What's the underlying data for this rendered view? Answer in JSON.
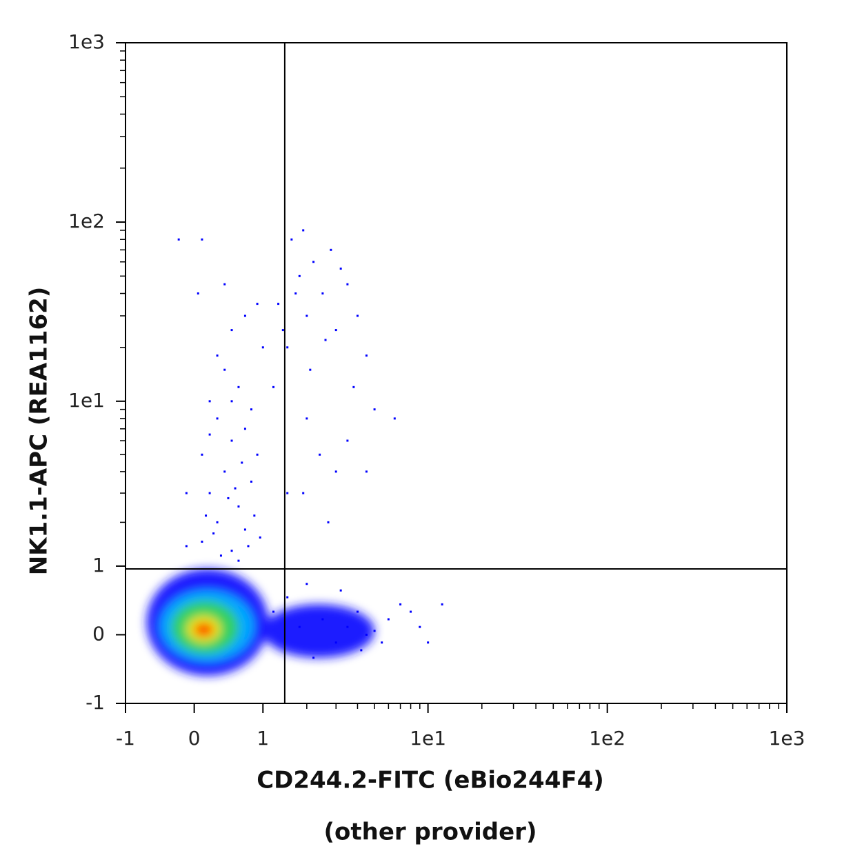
{
  "chart_data": {
    "type": "scatter",
    "xlabel": "CD244.2-FITC (eBio244F4)",
    "xlabel_note": "(other provider)",
    "ylabel": "NK1.1-APC (REA1162)",
    "xscale": "asinh",
    "yscale": "asinh",
    "xlim": [
      -1,
      1000
    ],
    "ylim": [
      -1,
      1000
    ],
    "xticks": [
      -1,
      0,
      1,
      {
        "value": 10,
        "label": "1e1"
      },
      {
        "value": 100,
        "label": "1e2"
      },
      {
        "value": 1000,
        "label": "1e3"
      }
    ],
    "yticks": [
      -1,
      0,
      1,
      {
        "value": 10,
        "label": "1e1"
      },
      {
        "value": 100,
        "label": "1e2"
      },
      {
        "value": 1000,
        "label": "1e3"
      }
    ],
    "xminorticks": [
      2,
      3,
      4,
      5,
      6,
      7,
      8,
      9,
      20,
      30,
      40,
      50,
      60,
      70,
      80,
      90,
      200,
      300,
      400,
      500,
      600,
      700,
      800,
      900
    ],
    "yminorticks": [
      2,
      3,
      4,
      5,
      6,
      7,
      8,
      9,
      20,
      30,
      40,
      50,
      60,
      70,
      80,
      90,
      200,
      300,
      400,
      500,
      600,
      700,
      800,
      900
    ],
    "gates": {
      "x": 1.44,
      "y": 0.95
    },
    "density": [
      {
        "color": "#1a1aff",
        "x_range": [
          -0.65,
          1.1
        ],
        "y_range": [
          -0.55,
          0.95
        ]
      },
      {
        "color": "#1a1aff",
        "x_range": [
          1.0,
          5.0
        ],
        "y_range": [
          -0.3,
          0.4
        ]
      },
      {
        "color": "#00a8ff",
        "x_range": [
          -0.45,
          0.85
        ],
        "y_range": [
          -0.35,
          0.6
        ]
      },
      {
        "color": "#30d060",
        "x_range": [
          -0.3,
          0.6
        ],
        "y_range": [
          -0.25,
          0.45
        ]
      },
      {
        "color": "#e8e800",
        "x_range": [
          -0.1,
          0.35
        ],
        "y_range": [
          -0.1,
          0.25
        ]
      },
      {
        "color": "#ff2000",
        "x_range": [
          0.0,
          0.25
        ],
        "y_range": [
          -0.02,
          0.15
        ]
      }
    ],
    "series": [
      {
        "color": "#0000ff",
        "x": [
          0.1,
          0.3,
          0.5,
          0.7,
          0.2,
          0.6,
          0.4,
          0.8,
          0.1,
          0.5,
          0.3,
          0.7,
          0.9,
          0.2,
          0.6,
          0.4,
          0.8,
          1.0,
          0.5,
          0.3,
          0.7,
          0.05,
          0.4,
          0.9,
          0.1,
          -0.2,
          0.6,
          0.35,
          0.15,
          0.55,
          0.25,
          0.75,
          0.45,
          0.85,
          0.65,
          0.2,
          0.95,
          0.5,
          -0.1,
          -0.1,
          1.5,
          2,
          2.5,
          1.8,
          3,
          2.2,
          1.3,
          3.5,
          2.8,
          1.6,
          4,
          2.1,
          1.9,
          3.2,
          1.4,
          2.6,
          1.7,
          4.5,
          3.8,
          5,
          2.4,
          3,
          1.9,
          2.7,
          4.5,
          6.5,
          3.5,
          1.2,
          2,
          1.5,
          1.2,
          1.8,
          2.5,
          3,
          3.5,
          4,
          4.5,
          5,
          6,
          7,
          9,
          10,
          12,
          2.2,
          1.5,
          3.2,
          4.2,
          5.5,
          2,
          8
        ],
        "y": [
          1.5,
          2,
          1.3,
          1.8,
          3,
          2.5,
          4,
          3.5,
          5,
          6,
          8,
          7,
          5,
          10,
          12,
          15,
          9,
          20,
          25,
          18,
          30,
          40,
          45,
          35,
          80,
          80,
          1.1,
          1.2,
          2.2,
          3.2,
          1.7,
          1.4,
          2.8,
          2.2,
          4.5,
          6.5,
          1.6,
          10,
          3,
          1.4,
          20,
          30,
          40,
          50,
          25,
          60,
          35,
          45,
          70,
          80,
          30,
          15,
          90,
          55,
          25,
          22,
          40,
          18,
          12,
          9,
          5,
          4,
          3,
          2,
          4,
          8,
          6,
          12,
          8,
          3,
          0.3,
          0.1,
          0.2,
          -0.1,
          0.1,
          0.3,
          0,
          0.05,
          0.2,
          0.4,
          0.1,
          -0.1,
          0.4,
          -0.3,
          0.5,
          0.6,
          -0.2,
          -0.1,
          0.7,
          0.3
        ]
      }
    ]
  }
}
